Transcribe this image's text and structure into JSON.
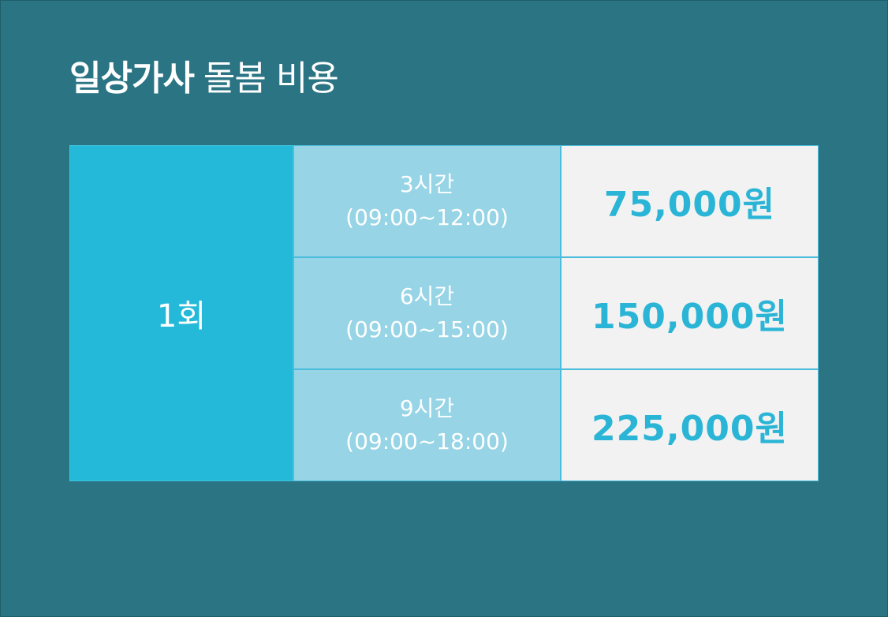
{
  "title": {
    "bold": "일상가사",
    "light": "돌봄 비용"
  },
  "table": {
    "count_label": "1회",
    "rows": [
      {
        "duration": "3시간",
        "time_range": "(09:00~12:00)",
        "price": "75,000원"
      },
      {
        "duration": "6시간",
        "time_range": "(09:00~15:00)",
        "price": "150,000원"
      },
      {
        "duration": "9시간",
        "time_range": "(09:00~18:00)",
        "price": "225,000원"
      }
    ]
  },
  "colors": {
    "background": "#2a7484",
    "count_cell": "#24b9d8",
    "duration_cell": "#96d4e6",
    "price_cell": "#f2f2f2",
    "price_text": "#2ab5d6"
  }
}
